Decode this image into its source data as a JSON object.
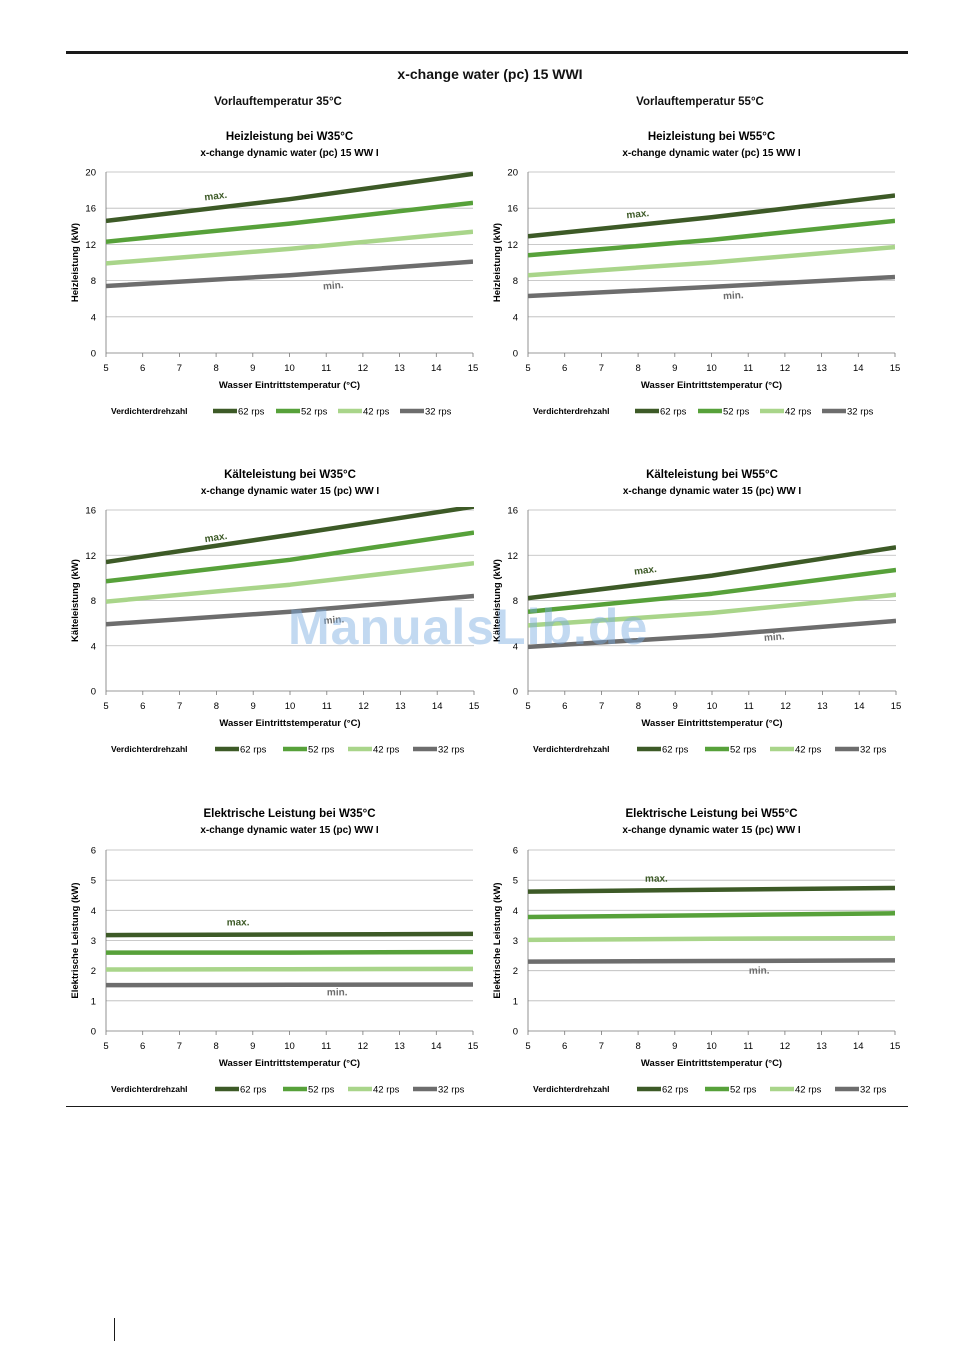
{
  "page": {
    "title": "x-change water (pc) 15 WWI",
    "column_headings": [
      "Vorlauftemperatur 35°C",
      "Vorlauftemperatur 55°C"
    ],
    "watermark": "ManualsLib.de"
  },
  "legend": {
    "label": "Verdichterdrehzahl",
    "series": [
      "62 rps",
      "52 rps",
      "42 rps",
      "32 rps"
    ]
  },
  "colors": {
    "62 rps": "#3d5a27",
    "52 rps": "#57a13a",
    "42 rps": "#a9d58a",
    "32 rps": "#6d6d6d",
    "max_label": "#3d5a27",
    "min_label": "#6d6d6d"
  },
  "chart_data": [
    {
      "type": "line",
      "title": "Heizleistung bei W35°C",
      "subtitle": "x-change dynamic water (pc) 15 WW I",
      "xlabel": "Wasser Eintrittstemperatur (°C)",
      "ylabel": "Heizleistung (kW)",
      "xlim": [
        5,
        15
      ],
      "ylim": [
        0,
        20
      ],
      "xticks": [
        5,
        6,
        7,
        8,
        9,
        10,
        11,
        12,
        13,
        14,
        15
      ],
      "yticks": [
        0,
        4,
        8,
        12,
        16,
        20
      ],
      "grid": true,
      "legend_position": "bottom",
      "x": [
        5,
        10,
        15
      ],
      "series": [
        {
          "name": "62 rps",
          "values": [
            14.6,
            17.0,
            19.8
          ]
        },
        {
          "name": "52 rps",
          "values": [
            12.3,
            14.3,
            16.6
          ]
        },
        {
          "name": "42 rps",
          "values": [
            9.9,
            11.5,
            13.4
          ]
        },
        {
          "name": "32 rps",
          "values": [
            7.4,
            8.6,
            10.1
          ]
        }
      ],
      "annotations": [
        {
          "text": "max.",
          "x": 8.0,
          "y": 17.0,
          "kind": "max"
        },
        {
          "text": "min.",
          "x": 11.2,
          "y": 7.1,
          "kind": "min"
        }
      ]
    },
    {
      "type": "line",
      "title": "Heizleistung bei W55°C",
      "subtitle": "x-change dynamic water (pc) 15 WW I",
      "xlabel": "Wasser Eintrittstemperatur (°C)",
      "ylabel": "Heizleistung (kW)",
      "xlim": [
        5,
        15
      ],
      "ylim": [
        0,
        20
      ],
      "xticks": [
        5,
        6,
        7,
        8,
        9,
        10,
        11,
        12,
        13,
        14,
        15
      ],
      "yticks": [
        0,
        4,
        8,
        12,
        16,
        20
      ],
      "grid": true,
      "legend_position": "bottom",
      "x": [
        5,
        10,
        15
      ],
      "series": [
        {
          "name": "62 rps",
          "values": [
            12.9,
            15.0,
            17.4
          ]
        },
        {
          "name": "52 rps",
          "values": [
            10.8,
            12.5,
            14.6
          ]
        },
        {
          "name": "42 rps",
          "values": [
            8.6,
            10.0,
            11.7
          ]
        },
        {
          "name": "32 rps",
          "values": [
            6.3,
            7.3,
            8.4
          ]
        }
      ],
      "annotations": [
        {
          "text": "max.",
          "x": 8.0,
          "y": 15.0,
          "kind": "max"
        },
        {
          "text": "min.",
          "x": 10.6,
          "y": 6.0,
          "kind": "min"
        }
      ]
    },
    {
      "type": "line",
      "title": "Kälteleistung bei W35°C",
      "subtitle": "x-change dynamic water 15 (pc) WW I",
      "xlabel": "Wasser Eintrittstemperatur (°C)",
      "ylabel": "Kälteleistung (kW)",
      "xlim": [
        5,
        15
      ],
      "ylim": [
        0,
        16
      ],
      "xticks": [
        5,
        6,
        7,
        8,
        9,
        10,
        11,
        12,
        13,
        14,
        15
      ],
      "yticks": [
        0,
        4,
        8,
        12,
        16
      ],
      "grid": true,
      "legend_position": "bottom",
      "x": [
        5,
        10,
        15
      ],
      "series": [
        {
          "name": "62 rps",
          "values": [
            11.4,
            13.8,
            16.3
          ]
        },
        {
          "name": "52 rps",
          "values": [
            9.7,
            11.6,
            14.0
          ]
        },
        {
          "name": "42 rps",
          "values": [
            7.9,
            9.4,
            11.3
          ]
        },
        {
          "name": "32 rps",
          "values": [
            5.9,
            7.0,
            8.4
          ]
        }
      ],
      "annotations": [
        {
          "text": "max.",
          "x": 8.0,
          "y": 13.3,
          "kind": "max"
        },
        {
          "text": "min.",
          "x": 11.2,
          "y": 6.0,
          "kind": "min"
        }
      ]
    },
    {
      "type": "line",
      "title": "Kälteleistung bei W55°C",
      "subtitle": "x-change dynamic water 15 (pc) WW I",
      "xlabel": "Wasser Eintrittstemperatur (°C)",
      "ylabel": "Kälteleistung (kW)",
      "xlim": [
        5,
        15
      ],
      "ylim": [
        0,
        16
      ],
      "xticks": [
        5,
        6,
        7,
        8,
        9,
        10,
        11,
        12,
        13,
        14,
        15
      ],
      "yticks": [
        0,
        4,
        8,
        12,
        16
      ],
      "grid": true,
      "legend_position": "bottom",
      "x": [
        5,
        10,
        15
      ],
      "series": [
        {
          "name": "62 rps",
          "values": [
            8.2,
            10.2,
            12.7
          ]
        },
        {
          "name": "52 rps",
          "values": [
            7.0,
            8.6,
            10.7
          ]
        },
        {
          "name": "42 rps",
          "values": [
            5.8,
            6.9,
            8.5
          ]
        },
        {
          "name": "32 rps",
          "values": [
            3.9,
            4.9,
            6.2
          ]
        }
      ],
      "annotations": [
        {
          "text": "max.",
          "x": 8.2,
          "y": 10.4,
          "kind": "max"
        },
        {
          "text": "min.",
          "x": 11.7,
          "y": 4.5,
          "kind": "min"
        }
      ]
    },
    {
      "type": "line",
      "title": "Elektrische Leistung bei W35°C",
      "subtitle": "x-change dynamic water 15 (pc) WW I",
      "xlabel": "Wasser Eintrittstemperatur (°C)",
      "ylabel": "Elektrische Leistung (kW)",
      "xlim": [
        5,
        15
      ],
      "ylim": [
        0,
        6
      ],
      "xticks": [
        5,
        6,
        7,
        8,
        9,
        10,
        11,
        12,
        13,
        14,
        15
      ],
      "yticks": [
        0,
        1,
        2,
        3,
        4,
        5,
        6
      ],
      "grid": true,
      "legend_position": "bottom",
      "x": [
        5,
        10,
        15
      ],
      "series": [
        {
          "name": "62 rps",
          "values": [
            3.18,
            3.2,
            3.22
          ]
        },
        {
          "name": "52 rps",
          "values": [
            2.6,
            2.6,
            2.62
          ]
        },
        {
          "name": "42 rps",
          "values": [
            2.04,
            2.05,
            2.06
          ]
        },
        {
          "name": "32 rps",
          "values": [
            1.52,
            1.53,
            1.54
          ]
        }
      ],
      "annotations": [
        {
          "text": "max.",
          "x": 8.6,
          "y": 3.5,
          "kind": "max"
        },
        {
          "text": "min.",
          "x": 11.3,
          "y": 1.18,
          "kind": "min"
        }
      ]
    },
    {
      "type": "line",
      "title": "Elektrische Leistung bei W55°C",
      "subtitle": "x-change dynamic water 15 (pc) WW I",
      "xlabel": "Wasser Eintrittstemperatur (°C)",
      "ylabel": "Elektrische Leistung (kW)",
      "xlim": [
        5,
        15
      ],
      "ylim": [
        0,
        6
      ],
      "xticks": [
        5,
        6,
        7,
        8,
        9,
        10,
        11,
        12,
        13,
        14,
        15
      ],
      "yticks": [
        0,
        1,
        2,
        3,
        4,
        5,
        6
      ],
      "grid": true,
      "legend_position": "bottom",
      "x": [
        5,
        10,
        15
      ],
      "series": [
        {
          "name": "62 rps",
          "values": [
            4.62,
            4.68,
            4.74
          ]
        },
        {
          "name": "52 rps",
          "values": [
            3.78,
            3.84,
            3.9
          ]
        },
        {
          "name": "42 rps",
          "values": [
            3.02,
            3.06,
            3.08
          ]
        },
        {
          "name": "32 rps",
          "values": [
            2.3,
            2.32,
            2.34
          ]
        }
      ],
      "annotations": [
        {
          "text": "max.",
          "x": 8.5,
          "y": 4.95,
          "kind": "max"
        },
        {
          "text": "min.",
          "x": 11.3,
          "y": 1.9,
          "kind": "min"
        }
      ]
    }
  ]
}
